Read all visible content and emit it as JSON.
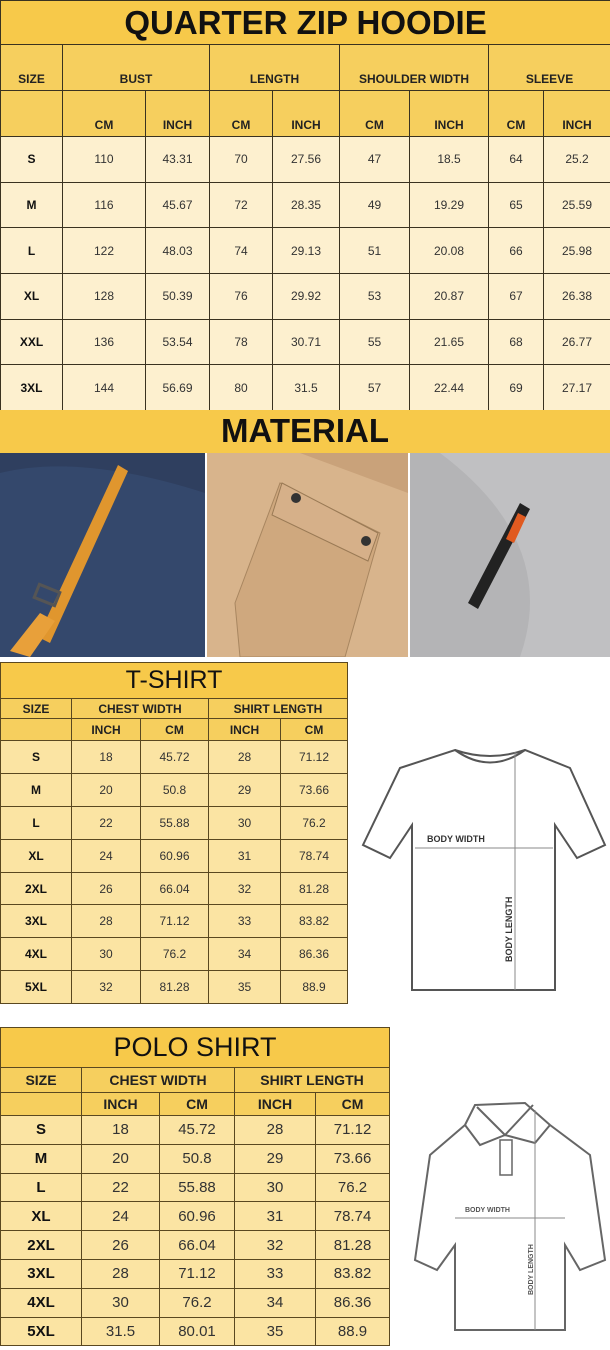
{
  "hoodie": {
    "title": "QUARTER ZIP HOODIE",
    "groups": [
      "SIZE",
      "BUST",
      "LENGTH",
      "SHOULDER WIDTH",
      "SLEEVE"
    ],
    "units": [
      "CM",
      "INCH",
      "CM",
      "INCH",
      "CM",
      "INCH",
      "CM",
      "INCH"
    ],
    "rows": [
      [
        "S",
        "110",
        "43.31",
        "70",
        "27.56",
        "47",
        "18.5",
        "64",
        "25.2"
      ],
      [
        "M",
        "116",
        "45.67",
        "72",
        "28.35",
        "49",
        "19.29",
        "65",
        "25.59"
      ],
      [
        "L",
        "122",
        "48.03",
        "74",
        "29.13",
        "51",
        "20.08",
        "66",
        "25.98"
      ],
      [
        "XL",
        "128",
        "50.39",
        "76",
        "29.92",
        "53",
        "20.87",
        "67",
        "26.38"
      ],
      [
        "XXL",
        "136",
        "53.54",
        "78",
        "30.71",
        "55",
        "21.65",
        "68",
        "26.77"
      ],
      [
        "3XL",
        "144",
        "56.69",
        "80",
        "31.5",
        "57",
        "22.44",
        "69",
        "27.17"
      ]
    ]
  },
  "material": {
    "title": "MATERIAL",
    "photos": [
      "navy-fleece-pocket-with-orange-strap",
      "khaki-flap-pocket-with-snaps",
      "grey-sleeve-zip-pocket"
    ]
  },
  "tshirt": {
    "title": "T-SHIRT",
    "groups": [
      "SIZE",
      "CHEST WIDTH",
      "SHIRT LENGTH"
    ],
    "units": [
      "INCH",
      "CM",
      "INCH",
      "CM"
    ],
    "rows": [
      [
        "S",
        "18",
        "45.72",
        "28",
        "71.12"
      ],
      [
        "M",
        "20",
        "50.8",
        "29",
        "73.66"
      ],
      [
        "L",
        "22",
        "55.88",
        "30",
        "76.2"
      ],
      [
        "XL",
        "24",
        "60.96",
        "31",
        "78.74"
      ],
      [
        "2XL",
        "26",
        "66.04",
        "32",
        "81.28"
      ],
      [
        "3XL",
        "28",
        "71.12",
        "33",
        "83.82"
      ],
      [
        "4XL",
        "30",
        "76.2",
        "34",
        "86.36"
      ],
      [
        "5XL",
        "32",
        "81.28",
        "35",
        "88.9"
      ]
    ],
    "diagram": {
      "width_label": "BODY WIDTH",
      "length_label": "BODY LENGTH"
    }
  },
  "polo": {
    "title": "POLO SHIRT",
    "groups": [
      "SIZE",
      "CHEST WIDTH",
      "SHIRT LENGTH"
    ],
    "units": [
      "INCH",
      "CM",
      "INCH",
      "CM"
    ],
    "rows": [
      [
        "S",
        "18",
        "45.72",
        "28",
        "71.12"
      ],
      [
        "M",
        "20",
        "50.8",
        "29",
        "73.66"
      ],
      [
        "L",
        "22",
        "55.88",
        "30",
        "76.2"
      ],
      [
        "XL",
        "24",
        "60.96",
        "31",
        "78.74"
      ],
      [
        "2XL",
        "26",
        "66.04",
        "32",
        "81.28"
      ],
      [
        "3XL",
        "28",
        "71.12",
        "33",
        "83.82"
      ],
      [
        "4XL",
        "30",
        "76.2",
        "34",
        "86.36"
      ],
      [
        "5XL",
        "31.5",
        "80.01",
        "35",
        "88.9"
      ]
    ],
    "diagram": {
      "width_label": "BODY WIDTH",
      "length_label": "BODY LENGTH"
    }
  },
  "colors": {
    "title": "#f7c94a",
    "header": "#f6cf5e",
    "row_hoodie": "#fdf0cf",
    "row_shirt": "#fbe4a3"
  }
}
